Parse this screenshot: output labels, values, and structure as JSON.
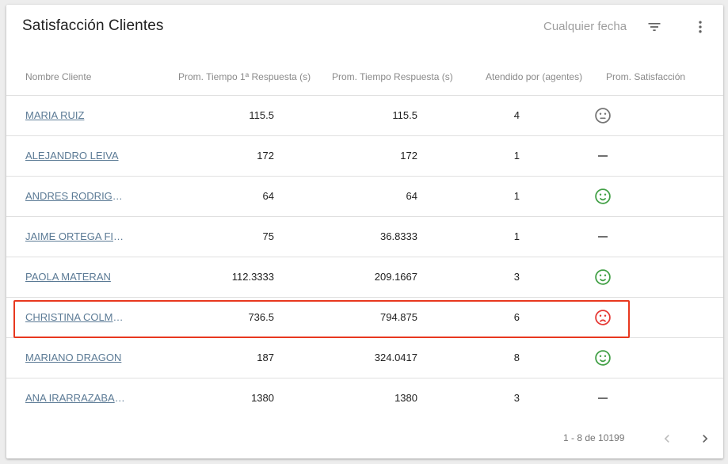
{
  "header": {
    "title": "Satisfacción Clientes",
    "date_filter": "Cualquier fecha",
    "filter_icon": "filter-list-icon",
    "more_icon": "more-vert-icon"
  },
  "columns": [
    "Nombre Cliente",
    "Prom. Tiempo 1ª Respuesta (s)",
    "Prom. Tiempo Respuesta (s)",
    "Atendido por (agentes)",
    "Prom. Satisfacción"
  ],
  "rows": [
    {
      "name": "MARIA  RUIZ",
      "first_response": "115.5",
      "response": "115.5",
      "agents": "4",
      "satisfaction": "neutral"
    },
    {
      "name": "ALEJANDRO LEIVA",
      "first_response": "172",
      "response": "172",
      "agents": "1",
      "satisfaction": "none"
    },
    {
      "name": "ANDRES RODRIGUEZ",
      "first_response": "64",
      "response": "64",
      "agents": "1",
      "satisfaction": "happy"
    },
    {
      "name": "JAIME ORTEGA FIER…",
      "first_response": "75",
      "response": "36.8333",
      "agents": "1",
      "satisfaction": "none"
    },
    {
      "name": "PAOLA MATERAN",
      "first_response": "112.3333",
      "response": "209.1667",
      "agents": "3",
      "satisfaction": "happy"
    },
    {
      "name": "CHRISTINA COLMEN…",
      "first_response": "736.5",
      "response": "794.875",
      "agents": "6",
      "satisfaction": "sad"
    },
    {
      "name": "MARIANO DRAGON",
      "first_response": "187",
      "response": "324.0417",
      "agents": "8",
      "satisfaction": "happy"
    },
    {
      "name": "ANA IRARRAZABAL …",
      "first_response": "1380",
      "response": "1380",
      "agents": "3",
      "satisfaction": "none"
    }
  ],
  "highlighted_row": 6,
  "pagination": {
    "range": "1 - 8 de 10199",
    "prev_icon": "chevron-left-icon",
    "next_icon": "chevron-right-icon"
  },
  "colors": {
    "link": "#5b7a95",
    "happy": "#43a047",
    "sad": "#e53935",
    "neutral": "#757575",
    "highlight": "#e8381f"
  }
}
